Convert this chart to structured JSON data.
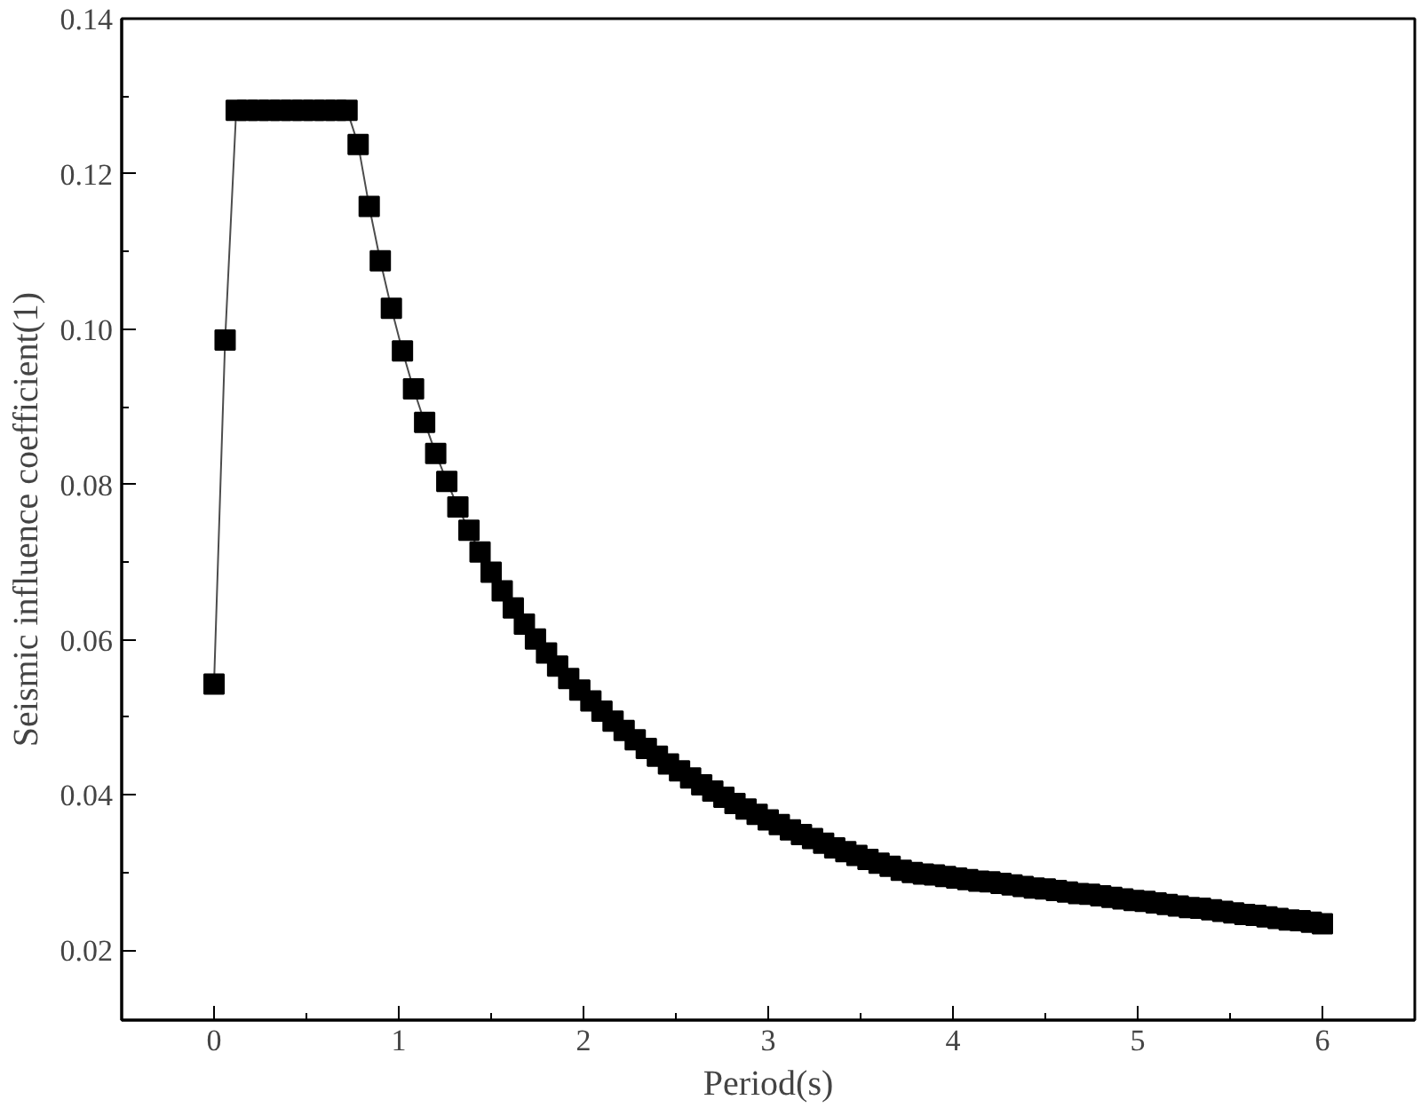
{
  "chart_data": {
    "type": "line",
    "xlabel": "Period(s)",
    "ylabel": "Seismic influence coefficient(1)",
    "marker": "square",
    "line_style": "solid",
    "xlim": [
      -0.5,
      6.5
    ],
    "ylim": [
      0.011,
      0.14
    ],
    "xticks": [
      0,
      1,
      2,
      3,
      4,
      5,
      6,
      {
        "value": -0.5,
        "label": null
      },
      {
        "value": 0.5,
        "label": null
      },
      {
        "value": 1.5,
        "label": null
      },
      {
        "value": 2.5,
        "label": null
      },
      {
        "value": 3.5,
        "label": null
      },
      {
        "value": 4.5,
        "label": null
      },
      {
        "value": 5.5,
        "label": null
      }
    ],
    "yticks": [
      {
        "value": 0.02,
        "label": "0.02"
      },
      {
        "value": 0.04,
        "label": "0.04"
      },
      {
        "value": 0.06,
        "label": "0.06"
      },
      {
        "value": 0.08,
        "label": "0.08"
      },
      {
        "value": 0.1,
        "label": "0.10"
      },
      {
        "value": 0.12,
        "label": "0.12"
      },
      {
        "value": 0.14,
        "label": "0.14"
      },
      {
        "value": 0.03,
        "label": null
      },
      {
        "value": 0.05,
        "label": null
      },
      {
        "value": 0.07,
        "label": null
      },
      {
        "value": 0.09,
        "label": null
      },
      {
        "value": 0.11,
        "label": null
      },
      {
        "value": 0.13,
        "label": null
      }
    ],
    "x": [
      0,
      0.06,
      0.12,
      0.18,
      0.24,
      0.3,
      0.36,
      0.42,
      0.48,
      0.54,
      0.6,
      0.66,
      0.72,
      0.78,
      0.84,
      0.9,
      0.96,
      1.02,
      1.08,
      1.14,
      1.2,
      1.26,
      1.32,
      1.38,
      1.44,
      1.5,
      1.56,
      1.62,
      1.68,
      1.74,
      1.8,
      1.86,
      1.92,
      1.98,
      2.04,
      2.1,
      2.16,
      2.22,
      2.28,
      2.34,
      2.4,
      2.46,
      2.52,
      2.58,
      2.64,
      2.7,
      2.76,
      2.82,
      2.88,
      2.94,
      3.0,
      3.06,
      3.12,
      3.18,
      3.24,
      3.3,
      3.36,
      3.42,
      3.48,
      3.54,
      3.6,
      3.66,
      3.72,
      3.78,
      3.84,
      3.9,
      3.96,
      4.02,
      4.08,
      4.14,
      4.2,
      4.26,
      4.32,
      4.38,
      4.44,
      4.5,
      4.56,
      4.62,
      4.68,
      4.74,
      4.8,
      4.86,
      4.92,
      4.98,
      5.04,
      5.1,
      5.16,
      5.22,
      5.28,
      5.34,
      5.4,
      5.46,
      5.52,
      5.58,
      5.64,
      5.7,
      5.76,
      5.82,
      5.88,
      5.94,
      6.0
    ],
    "series": [
      {
        "color": "#000000",
        "values": [
          0.0543,
          0.0986,
          0.1282,
          0.1282,
          0.1282,
          0.1282,
          0.1282,
          0.1282,
          0.1282,
          0.1282,
          0.1282,
          0.1282,
          0.1282,
          0.1238,
          0.1158,
          0.1088,
          0.1027,
          0.0972,
          0.0923,
          0.088,
          0.084,
          0.0804,
          0.0771,
          0.0741,
          0.0713,
          0.0687,
          0.0663,
          0.0641,
          0.062,
          0.0601,
          0.0583,
          0.0566,
          0.055,
          0.0535,
          0.0521,
          0.0508,
          0.0495,
          0.0483,
          0.0471,
          0.046,
          0.045,
          0.044,
          0.0431,
          0.0422,
          0.0413,
          0.0405,
          0.0397,
          0.0389,
          0.0382,
          0.0375,
          0.0368,
          0.0362,
          0.0355,
          0.0349,
          0.0344,
          0.0338,
          0.0332,
          0.0327,
          0.0322,
          0.0317,
          0.0312,
          0.0308,
          0.0303,
          0.03,
          0.0298,
          0.0297,
          0.0295,
          0.0293,
          0.0291,
          0.0289,
          0.0288,
          0.0286,
          0.0284,
          0.0282,
          0.028,
          0.0279,
          0.0277,
          0.0275,
          0.0273,
          0.0272,
          0.027,
          0.0268,
          0.0266,
          0.0264,
          0.0263,
          0.0261,
          0.0259,
          0.0257,
          0.0255,
          0.0254,
          0.0252,
          0.025,
          0.0248,
          0.0246,
          0.0245,
          0.0243,
          0.0241,
          0.0239,
          0.0238,
          0.0236,
          0.0234
        ]
      }
    ]
  }
}
